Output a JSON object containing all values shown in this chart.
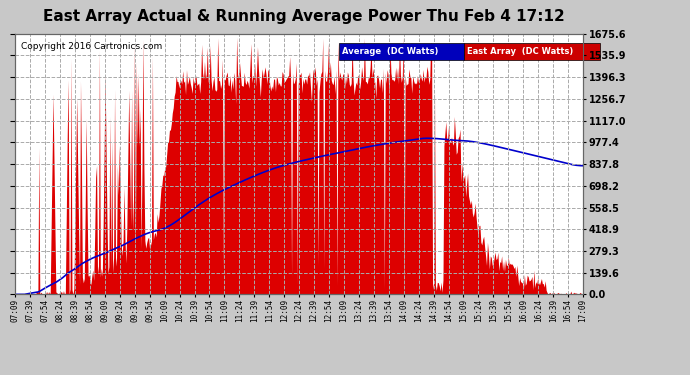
{
  "title": "East Array Actual & Running Average Power Thu Feb 4 17:12",
  "copyright": "Copyright 2016 Cartronics.com",
  "legend_labels": [
    "Average  (DC Watts)",
    "East Array  (DC Watts)"
  ],
  "legend_colors": [
    "#0000bb",
    "#cc0000"
  ],
  "yticks": [
    0.0,
    139.6,
    279.3,
    418.9,
    558.5,
    698.2,
    837.8,
    977.4,
    1117.0,
    1256.7,
    1396.3,
    1535.9,
    1675.6
  ],
  "ymax": 1675.6,
  "ymin": 0.0,
  "bg_color": "#c8c8c8",
  "plot_bg_color": "#ffffff",
  "grid_color": "#aaaaaa",
  "area_color": "#dd0000",
  "line_color": "#0000cc",
  "title_fontsize": 11,
  "copyright_fontsize": 6.5,
  "xtick_labels": [
    "07:09",
    "07:39",
    "07:54",
    "08:24",
    "08:39",
    "08:54",
    "09:09",
    "09:24",
    "09:39",
    "09:54",
    "10:09",
    "10:24",
    "10:39",
    "10:54",
    "11:09",
    "11:24",
    "11:39",
    "11:54",
    "12:09",
    "12:24",
    "12:39",
    "12:54",
    "13:09",
    "13:24",
    "13:39",
    "13:54",
    "14:09",
    "14:24",
    "14:39",
    "14:54",
    "15:09",
    "15:24",
    "15:39",
    "15:54",
    "16:09",
    "16:24",
    "16:39",
    "16:54",
    "17:09"
  ]
}
